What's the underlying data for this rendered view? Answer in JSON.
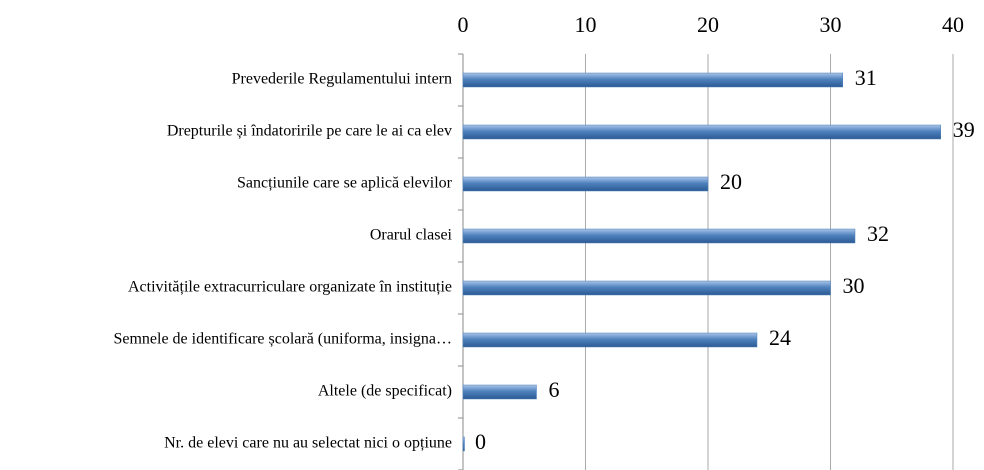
{
  "chart_data": {
    "type": "bar",
    "orientation": "horizontal",
    "categories": [
      "Prevederile Regulamentului intern",
      "Drepturile și îndatoririle pe care le ai ca elev",
      "Sancțiunile care se aplică elevilor",
      "Orarul clasei",
      "Activitățile extracurriculare organizate în instituție",
      "Semnele de identificare școlară (uniforma, insigna…",
      "Altele (de specificat)",
      "Nr. de elevi care nu au selectat nici o opțiune"
    ],
    "values": [
      31,
      39,
      20,
      32,
      30,
      24,
      6,
      0
    ],
    "color": "#4f81bd",
    "xlim": [
      0,
      40
    ],
    "xticks": [
      0,
      10,
      20,
      30,
      40
    ],
    "grid": true
  }
}
